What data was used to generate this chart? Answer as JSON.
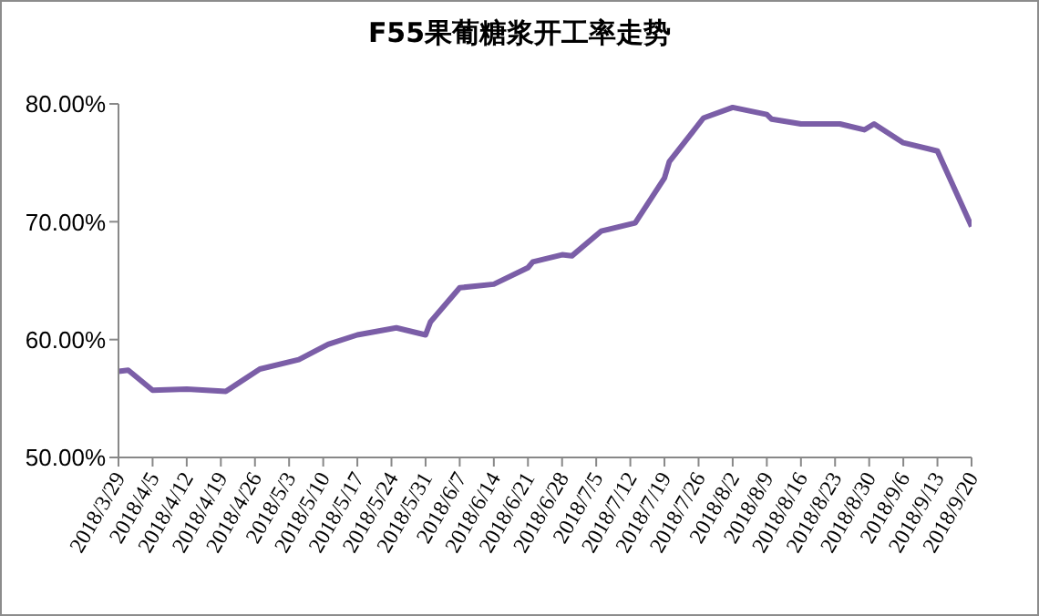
{
  "chart_data": {
    "type": "line",
    "title": "F55果葡糖浆开工率走势",
    "x": [
      "2018-03-29",
      "2018-03-31",
      "2018-04-05",
      "2018-04-12",
      "2018-04-20",
      "2018-04-27",
      "2018-05-05",
      "2018-05-11",
      "2018-05-17",
      "2018-05-25",
      "2018-05-31",
      "2018-06-01",
      "2018-06-07",
      "2018-06-14",
      "2018-06-21",
      "2018-06-22",
      "2018-06-28",
      "2018-06-30",
      "2018-07-06",
      "2018-07-13",
      "2018-07-19",
      "2018-07-20",
      "2018-07-27",
      "2018-08-02",
      "2018-08-09",
      "2018-08-10",
      "2018-08-16",
      "2018-08-24",
      "2018-08-29",
      "2018-08-31",
      "2018-09-06",
      "2018-09-13",
      "2018-09-20"
    ],
    "series": [
      {
        "color": "#7b5ea7",
        "values": [
          57.3,
          57.4,
          55.7,
          55.8,
          55.6,
          57.5,
          58.3,
          59.6,
          60.4,
          61.0,
          60.4,
          61.5,
          64.4,
          64.7,
          66.1,
          66.6,
          67.2,
          67.1,
          69.2,
          69.9,
          73.7,
          75.1,
          78.8,
          79.7,
          79.1,
          78.7,
          78.3,
          78.3,
          77.8,
          78.3,
          76.7,
          76.0,
          69.6
        ]
      }
    ],
    "xlim": [
      "2018-03-29",
      "2018-09-20"
    ],
    "xticks": [
      {
        "value": "2018-03-29",
        "label": "2018/3/29"
      },
      {
        "value": "2018-04-05",
        "label": "2018/4/5"
      },
      {
        "value": "2018-04-12",
        "label": "2018/4/12"
      },
      {
        "value": "2018-04-19",
        "label": "2018/4/19"
      },
      {
        "value": "2018-04-26",
        "label": "2018/4/26"
      },
      {
        "value": "2018-05-03",
        "label": "2018/5/3"
      },
      {
        "value": "2018-05-10",
        "label": "2018/5/10"
      },
      {
        "value": "2018-05-17",
        "label": "2018/5/17"
      },
      {
        "value": "2018-05-24",
        "label": "2018/5/24"
      },
      {
        "value": "2018-05-31",
        "label": "2018/5/31"
      },
      {
        "value": "2018-06-07",
        "label": "2018/6/7"
      },
      {
        "value": "2018-06-14",
        "label": "2018/6/14"
      },
      {
        "value": "2018-06-21",
        "label": "2018/6/21"
      },
      {
        "value": "2018-06-28",
        "label": "2018/6/28"
      },
      {
        "value": "2018-07-05",
        "label": "2018/7/5"
      },
      {
        "value": "2018-07-12",
        "label": "2018/7/12"
      },
      {
        "value": "2018-07-19",
        "label": "2018/7/19"
      },
      {
        "value": "2018-07-26",
        "label": "2018/7/26"
      },
      {
        "value": "2018-08-02",
        "label": "2018/8/2"
      },
      {
        "value": "2018-08-09",
        "label": "2018/8/9"
      },
      {
        "value": "2018-08-16",
        "label": "2018/8/16"
      },
      {
        "value": "2018-08-23",
        "label": "2018/8/23"
      },
      {
        "value": "2018-08-30",
        "label": "2018/8/30"
      },
      {
        "value": "2018-09-06",
        "label": "2018/9/6"
      },
      {
        "value": "2018-09-13",
        "label": "2018/9/13"
      },
      {
        "value": "2018-09-20",
        "label": "2018/9/20"
      }
    ],
    "ylim": [
      50,
      80
    ],
    "yticks": [
      {
        "value": 50,
        "label": "50.00%"
      },
      {
        "value": 60,
        "label": "60.00%"
      },
      {
        "value": 70,
        "label": "70.00%"
      },
      {
        "value": 80,
        "label": "80.00%"
      }
    ],
    "grid": false,
    "marker": "none",
    "line_style": "solid"
  }
}
